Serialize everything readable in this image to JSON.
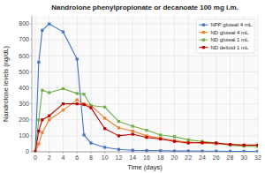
{
  "chart_data": {
    "type": "line",
    "title": "Nandrolone phenylpropionate or decanoate 100 mg i.m.",
    "x_label": "Time (days)",
    "y_label": "Nandrolone levels (ng/dL)",
    "x": [
      0,
      0.5,
      1,
      2,
      4,
      6,
      7,
      8,
      10,
      12,
      14,
      16,
      18,
      20,
      22,
      24,
      26,
      28,
      30,
      32
    ],
    "series": [
      {
        "name": "NPP gluteal 4 mL",
        "color": "#4472c4",
        "marker": "square",
        "values": [
          0,
          560,
          760,
          800,
          750,
          580,
          105,
          55,
          28,
          15,
          10,
          8,
          7,
          5,
          5,
          4,
          4,
          3,
          3,
          3
        ]
      },
      {
        "name": "ND gluteal 4 mL",
        "color": "#ed7d31",
        "marker": "square",
        "values": [
          0,
          50,
          120,
          200,
          260,
          325,
          300,
          290,
          210,
          150,
          130,
          100,
          85,
          70,
          60,
          55,
          50,
          45,
          40,
          40
        ]
      },
      {
        "name": "ND gluteal 1 mL",
        "color": "#70ad47",
        "marker": "square",
        "values": [
          0,
          200,
          385,
          370,
          395,
          365,
          360,
          290,
          280,
          190,
          160,
          135,
          105,
          95,
          75,
          65,
          55,
          42,
          35,
          33
        ]
      },
      {
        "name": "ND deltoid 1 mL",
        "color": "#c00000",
        "marker": "square",
        "values": [
          0,
          130,
          200,
          225,
          300,
          300,
          295,
          275,
          145,
          100,
          110,
          90,
          80,
          65,
          55,
          58,
          55,
          46,
          42,
          42
        ]
      }
    ],
    "xlim": [
      -0.5,
      32
    ],
    "ylim": [
      0,
      850
    ],
    "xticks": [
      0,
      2,
      4,
      6,
      8,
      10,
      12,
      14,
      16,
      18,
      20,
      22,
      24,
      26,
      28,
      30,
      32
    ],
    "yticks": [
      0,
      100,
      200,
      300,
      400,
      500,
      600,
      700,
      800
    ],
    "grid": true,
    "legend": "upper right"
  }
}
